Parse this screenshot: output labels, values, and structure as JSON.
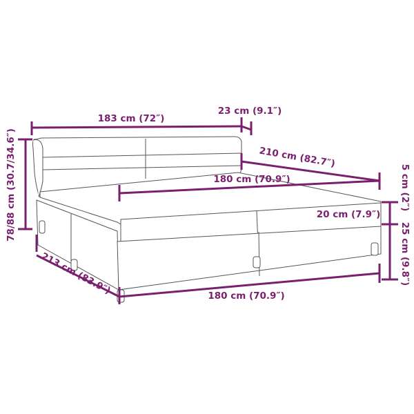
{
  "colors": {
    "dimension": "#7a1f6e",
    "outline": "#555555"
  },
  "dimensions": {
    "headboard_width": "183 cm (72″)",
    "headboard_wing": "23 cm (9.1″)",
    "total_height": "78/88 cm (30.7/34.6″)",
    "mattress_length": "210 cm (82.7″)",
    "mattress_width": "180 cm (70.9″)",
    "topper_height": "5 cm (2″)",
    "mattress_height": "20 cm (7.9″)",
    "base_height": "25 cm (9.8″)",
    "total_length": "213 cm (83.9″)",
    "total_width": "180 cm (70.9″)"
  }
}
